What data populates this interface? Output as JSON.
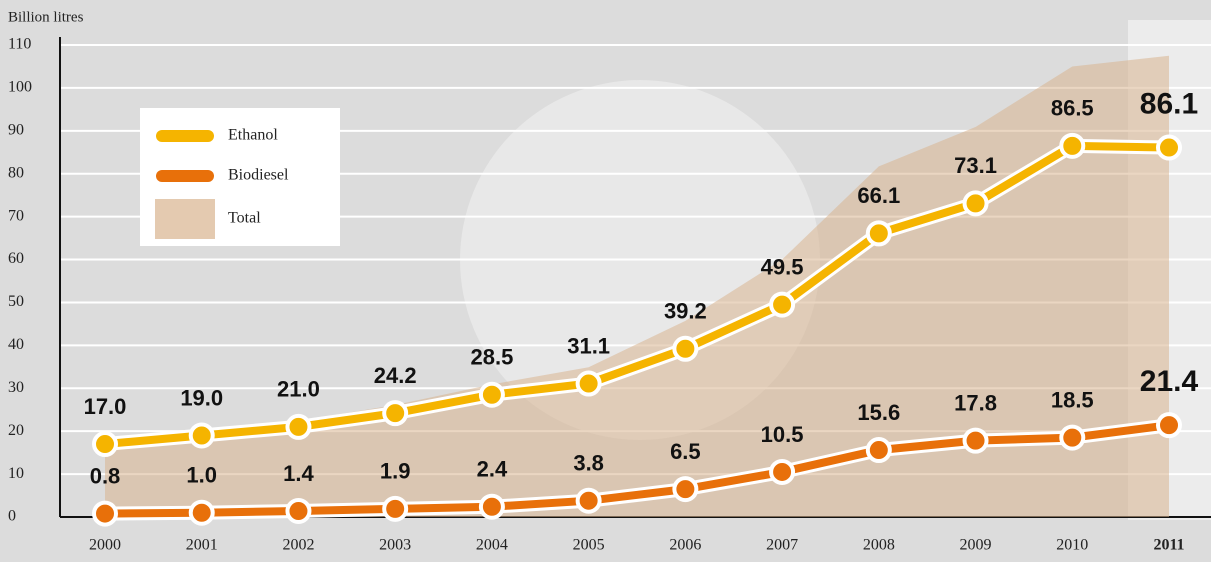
{
  "chart_data": {
    "type": "line",
    "y_label": "Billion litres",
    "categories": [
      "2000",
      "2001",
      "2002",
      "2003",
      "2004",
      "2005",
      "2006",
      "2007",
      "2008",
      "2009",
      "2010",
      "2011"
    ],
    "series": [
      {
        "name": "Total",
        "type": "area",
        "color": "#d9b48f",
        "values": [
          17.8,
          20,
          22.4,
          26.1,
          30.9,
          34.9,
          45.7,
          60,
          81.7,
          90.9,
          105,
          107.5
        ]
      },
      {
        "name": "Ethanol",
        "type": "line",
        "color": "#f5b400",
        "values": [
          17.0,
          19.0,
          21.0,
          24.2,
          28.5,
          31.1,
          39.2,
          49.5,
          66.1,
          73.1,
          86.5,
          86.1
        ],
        "value_labels": [
          "17.0",
          "19.0",
          "21.0",
          "24.2",
          "28.5",
          "31.1",
          "39.2",
          "49.5",
          "66.1",
          "73.1",
          "86.5",
          "86.1"
        ]
      },
      {
        "name": "Biodiesel",
        "type": "line",
        "color": "#e8700a",
        "values": [
          0.8,
          1.0,
          1.4,
          1.9,
          2.4,
          3.8,
          6.5,
          10.5,
          15.6,
          17.8,
          18.5,
          21.4
        ],
        "value_labels": [
          "0.8",
          "1.0",
          "1.4",
          "1.9",
          "2.4",
          "3.8",
          "6.5",
          "10.5",
          "15.6",
          "17.8",
          "18.5",
          "21.4"
        ]
      }
    ],
    "ylim": [
      0,
      110
    ],
    "yticks": [
      0,
      10,
      20,
      30,
      40,
      50,
      60,
      70,
      80,
      90,
      100,
      110
    ],
    "grid": true
  }
}
